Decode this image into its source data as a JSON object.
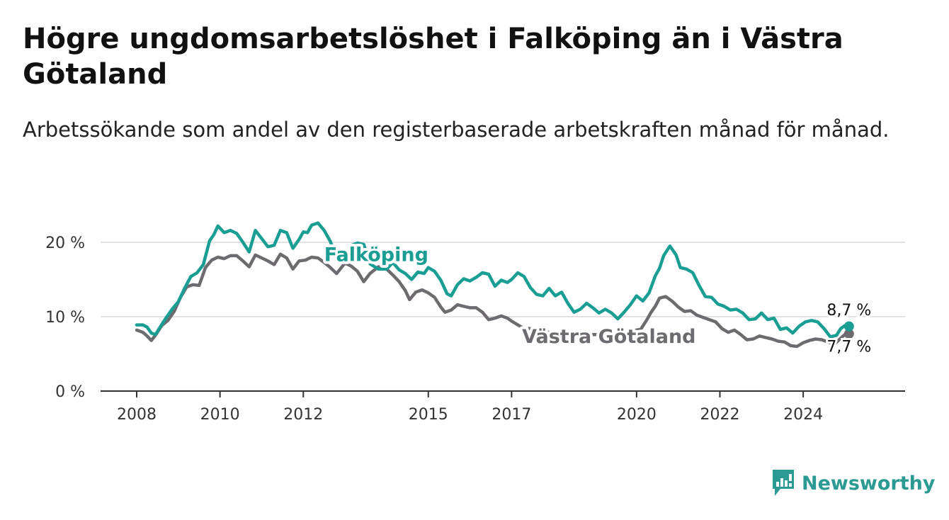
{
  "title": "Högre ungdomsarbetslöshet i Falköping än i Västra Götaland",
  "subtitle": "Arbetssökande som andel av den registerbaserade arbetskraften månad för månad.",
  "brand": {
    "name": "Newsworthy",
    "color": "#2b9a92"
  },
  "chart_data": {
    "type": "line",
    "title": "Högre ungdomsarbetslöshet i Falköping än i Västra Götaland",
    "subtitle": "Arbetssökande som andel av den registerbaserade arbetskraften månad för månad.",
    "xlabel": "",
    "ylabel": "",
    "xlim": [
      2008,
      2025.8
    ],
    "ylim": [
      0,
      23
    ],
    "x_ticks": [
      {
        "value": 2008,
        "label": "2008"
      },
      {
        "value": 2010,
        "label": "2010"
      },
      {
        "value": 2012,
        "label": "2012"
      },
      {
        "value": 2015,
        "label": "2015"
      },
      {
        "value": 2017,
        "label": "2017"
      },
      {
        "value": 2020,
        "label": "2020"
      },
      {
        "value": 2022,
        "label": "2022"
      },
      {
        "value": 2024,
        "label": "2024"
      }
    ],
    "y_ticks": [
      {
        "value": 0,
        "label": "0 %"
      },
      {
        "value": 10,
        "label": "10 %"
      },
      {
        "value": 20,
        "label": "20 %"
      }
    ],
    "grid": true,
    "legend": "inline labels",
    "series": [
      {
        "name": "Falköping",
        "color": "#1a9e94",
        "end_label": "8,7 %",
        "points": [
          [
            2008.0,
            8.9
          ],
          [
            2008.15,
            8.9
          ],
          [
            2008.25,
            8.6
          ],
          [
            2008.35,
            7.8
          ],
          [
            2008.45,
            7.6
          ],
          [
            2008.55,
            8.5
          ],
          [
            2008.7,
            9.8
          ],
          [
            2008.85,
            11.0
          ],
          [
            2009.0,
            12.0
          ],
          [
            2009.15,
            13.8
          ],
          [
            2009.3,
            15.4
          ],
          [
            2009.45,
            15.9
          ],
          [
            2009.6,
            17.0
          ],
          [
            2009.75,
            20.2
          ],
          [
            2009.85,
            21.0
          ],
          [
            2009.95,
            22.2
          ],
          [
            2010.1,
            21.3
          ],
          [
            2010.25,
            21.6
          ],
          [
            2010.4,
            21.2
          ],
          [
            2010.55,
            20.0
          ],
          [
            2010.7,
            18.7
          ],
          [
            2010.85,
            21.6
          ],
          [
            2011.0,
            20.5
          ],
          [
            2011.15,
            19.4
          ],
          [
            2011.3,
            19.6
          ],
          [
            2011.45,
            21.6
          ],
          [
            2011.6,
            21.3
          ],
          [
            2011.75,
            19.2
          ],
          [
            2011.9,
            20.4
          ],
          [
            2012.0,
            21.4
          ],
          [
            2012.1,
            21.3
          ],
          [
            2012.2,
            22.3
          ],
          [
            2012.35,
            22.6
          ],
          [
            2012.5,
            21.6
          ],
          [
            2012.65,
            20.1
          ],
          [
            2012.8,
            17.8
          ],
          [
            2013.0,
            17.5
          ],
          [
            2013.15,
            19.6
          ],
          [
            2013.3,
            19.9
          ],
          [
            2013.45,
            19.7
          ],
          [
            2013.6,
            17.1
          ],
          [
            2013.8,
            16.4
          ],
          [
            2014.0,
            16.4
          ],
          [
            2014.15,
            17.3
          ],
          [
            2014.3,
            16.3
          ],
          [
            2014.45,
            15.8
          ],
          [
            2014.6,
            15.0
          ],
          [
            2014.75,
            16.0
          ],
          [
            2014.9,
            15.8
          ],
          [
            2015.0,
            16.6
          ],
          [
            2015.15,
            16.1
          ],
          [
            2015.3,
            14.9
          ],
          [
            2015.45,
            13.1
          ],
          [
            2015.55,
            12.8
          ],
          [
            2015.7,
            14.3
          ],
          [
            2015.85,
            15.1
          ],
          [
            2016.0,
            14.8
          ],
          [
            2016.15,
            15.3
          ],
          [
            2016.3,
            15.9
          ],
          [
            2016.45,
            15.7
          ],
          [
            2016.6,
            14.1
          ],
          [
            2016.75,
            14.9
          ],
          [
            2016.9,
            14.6
          ],
          [
            2017.0,
            15.0
          ],
          [
            2017.15,
            15.9
          ],
          [
            2017.3,
            15.4
          ],
          [
            2017.45,
            13.9
          ],
          [
            2017.6,
            13.0
          ],
          [
            2017.75,
            12.8
          ],
          [
            2017.9,
            13.8
          ],
          [
            2018.05,
            12.8
          ],
          [
            2018.2,
            13.3
          ],
          [
            2018.35,
            11.8
          ],
          [
            2018.5,
            10.6
          ],
          [
            2018.65,
            11.0
          ],
          [
            2018.8,
            11.8
          ],
          [
            2018.95,
            11.2
          ],
          [
            2019.1,
            10.5
          ],
          [
            2019.25,
            11.0
          ],
          [
            2019.4,
            10.5
          ],
          [
            2019.55,
            9.7
          ],
          [
            2019.7,
            10.6
          ],
          [
            2019.85,
            11.6
          ],
          [
            2020.0,
            12.8
          ],
          [
            2020.15,
            12.1
          ],
          [
            2020.3,
            13.2
          ],
          [
            2020.45,
            15.5
          ],
          [
            2020.55,
            16.5
          ],
          [
            2020.65,
            18.2
          ],
          [
            2020.8,
            19.5
          ],
          [
            2020.95,
            18.3
          ],
          [
            2021.05,
            16.6
          ],
          [
            2021.2,
            16.4
          ],
          [
            2021.35,
            15.9
          ],
          [
            2021.5,
            14.2
          ],
          [
            2021.65,
            12.7
          ],
          [
            2021.8,
            12.6
          ],
          [
            2021.95,
            11.7
          ],
          [
            2022.1,
            11.4
          ],
          [
            2022.25,
            10.9
          ],
          [
            2022.4,
            11.0
          ],
          [
            2022.55,
            10.5
          ],
          [
            2022.7,
            9.6
          ],
          [
            2022.85,
            9.7
          ],
          [
            2023.0,
            10.5
          ],
          [
            2023.15,
            9.6
          ],
          [
            2023.3,
            9.8
          ],
          [
            2023.45,
            8.3
          ],
          [
            2023.6,
            8.5
          ],
          [
            2023.75,
            7.8
          ],
          [
            2023.9,
            8.7
          ],
          [
            2024.05,
            9.3
          ],
          [
            2024.2,
            9.5
          ],
          [
            2024.35,
            9.3
          ],
          [
            2024.5,
            8.4
          ],
          [
            2024.65,
            7.3
          ],
          [
            2024.8,
            7.5
          ],
          [
            2024.9,
            8.4
          ],
          [
            2025.0,
            8.8
          ],
          [
            2025.1,
            8.7
          ]
        ]
      },
      {
        "name": "Västra Götaland",
        "color": "#6e6b70",
        "end_label": "7,7 %",
        "points": [
          [
            2008.0,
            8.2
          ],
          [
            2008.15,
            7.9
          ],
          [
            2008.25,
            7.4
          ],
          [
            2008.35,
            6.8
          ],
          [
            2008.45,
            7.5
          ],
          [
            2008.6,
            8.8
          ],
          [
            2008.75,
            9.5
          ],
          [
            2008.9,
            10.7
          ],
          [
            2009.05,
            12.6
          ],
          [
            2009.2,
            14.0
          ],
          [
            2009.35,
            14.3
          ],
          [
            2009.5,
            14.2
          ],
          [
            2009.65,
            16.6
          ],
          [
            2009.8,
            17.6
          ],
          [
            2009.95,
            18.0
          ],
          [
            2010.1,
            17.8
          ],
          [
            2010.25,
            18.2
          ],
          [
            2010.4,
            18.2
          ],
          [
            2010.55,
            17.5
          ],
          [
            2010.7,
            16.7
          ],
          [
            2010.85,
            18.3
          ],
          [
            2011.0,
            17.9
          ],
          [
            2011.15,
            17.5
          ],
          [
            2011.3,
            17.0
          ],
          [
            2011.45,
            18.4
          ],
          [
            2011.6,
            17.9
          ],
          [
            2011.75,
            16.4
          ],
          [
            2011.9,
            17.5
          ],
          [
            2012.05,
            17.6
          ],
          [
            2012.2,
            18.0
          ],
          [
            2012.35,
            17.9
          ],
          [
            2012.5,
            17.3
          ],
          [
            2012.65,
            16.6
          ],
          [
            2012.8,
            15.8
          ],
          [
            2013.0,
            17.2
          ],
          [
            2013.15,
            16.8
          ],
          [
            2013.3,
            16.1
          ],
          [
            2013.45,
            14.7
          ],
          [
            2013.6,
            15.8
          ],
          [
            2013.8,
            16.7
          ],
          [
            2014.0,
            16.4
          ],
          [
            2014.15,
            15.6
          ],
          [
            2014.3,
            14.7
          ],
          [
            2014.45,
            13.5
          ],
          [
            2014.55,
            12.3
          ],
          [
            2014.7,
            13.3
          ],
          [
            2014.85,
            13.6
          ],
          [
            2015.0,
            13.2
          ],
          [
            2015.15,
            12.6
          ],
          [
            2015.3,
            11.3
          ],
          [
            2015.4,
            10.6
          ],
          [
            2015.55,
            10.9
          ],
          [
            2015.7,
            11.6
          ],
          [
            2015.85,
            11.4
          ],
          [
            2016.0,
            11.2
          ],
          [
            2016.15,
            11.2
          ],
          [
            2016.3,
            10.6
          ],
          [
            2016.45,
            9.6
          ],
          [
            2016.6,
            9.8
          ],
          [
            2016.75,
            10.1
          ],
          [
            2016.9,
            9.8
          ],
          [
            2017.0,
            9.4
          ],
          [
            2017.15,
            8.9
          ],
          [
            2017.3,
            8.4
          ],
          [
            2017.45,
            8.4
          ],
          [
            2017.6,
            8.3
          ],
          [
            2017.75,
            8.1
          ],
          [
            2017.9,
            7.9
          ],
          [
            2018.1,
            7.8
          ],
          [
            2018.3,
            7.9
          ],
          [
            2018.5,
            7.7
          ],
          [
            2018.7,
            7.8
          ],
          [
            2018.9,
            7.6
          ],
          [
            2019.1,
            7.6
          ],
          [
            2019.3,
            7.7
          ],
          [
            2019.5,
            7.6
          ],
          [
            2019.7,
            7.7
          ],
          [
            2019.9,
            8.1
          ],
          [
            2020.1,
            8.3
          ],
          [
            2020.25,
            9.6
          ],
          [
            2020.35,
            10.6
          ],
          [
            2020.45,
            11.4
          ],
          [
            2020.55,
            12.5
          ],
          [
            2020.7,
            12.7
          ],
          [
            2020.85,
            12.1
          ],
          [
            2021.0,
            11.3
          ],
          [
            2021.15,
            10.7
          ],
          [
            2021.3,
            10.8
          ],
          [
            2021.45,
            10.2
          ],
          [
            2021.6,
            9.9
          ],
          [
            2021.75,
            9.6
          ],
          [
            2021.9,
            9.3
          ],
          [
            2022.05,
            8.4
          ],
          [
            2022.2,
            7.9
          ],
          [
            2022.35,
            8.2
          ],
          [
            2022.5,
            7.6
          ],
          [
            2022.65,
            6.9
          ],
          [
            2022.8,
            7.0
          ],
          [
            2022.95,
            7.4
          ],
          [
            2023.1,
            7.2
          ],
          [
            2023.25,
            7.0
          ],
          [
            2023.4,
            6.7
          ],
          [
            2023.55,
            6.6
          ],
          [
            2023.7,
            6.1
          ],
          [
            2023.85,
            6.0
          ],
          [
            2024.0,
            6.5
          ],
          [
            2024.15,
            6.8
          ],
          [
            2024.3,
            7.0
          ],
          [
            2024.45,
            6.9
          ],
          [
            2024.6,
            6.6
          ],
          [
            2024.75,
            6.3
          ],
          [
            2024.9,
            7.1
          ],
          [
            2025.0,
            7.6
          ],
          [
            2025.1,
            7.7
          ]
        ]
      }
    ]
  }
}
